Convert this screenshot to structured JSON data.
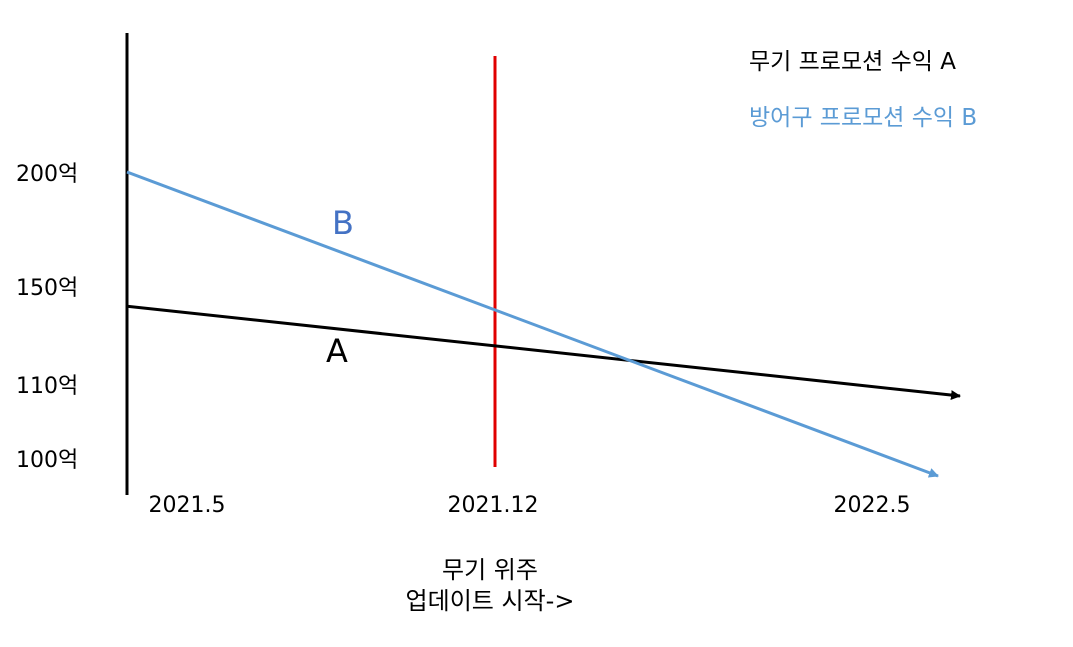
{
  "chart_data": {
    "type": "line",
    "x_ticks": [
      "2021.5",
      "2021.12",
      "2022.5"
    ],
    "y_ticks": [
      "200억",
      "150억",
      "110억",
      "100억"
    ],
    "series": [
      {
        "name": "무기 프로모션 수익 A",
        "label": "A",
        "color": "#000000",
        "x": [
          "2021.5",
          "2021.12",
          "2022.5"
        ],
        "values": [
          145,
          130,
          105
        ],
        "arrow": true
      },
      {
        "name": "방어구 프로모션 수익 B",
        "label": "B",
        "color": "#5b9bd5",
        "x": [
          "2021.5",
          "2021.12",
          "2022.5"
        ],
        "values": [
          200,
          135,
          85
        ],
        "arrow": true
      }
    ],
    "marker": {
      "x": "2021.12",
      "color": "#e00000",
      "label_lines": [
        "무기 위주",
        "업데이트 시작->"
      ]
    },
    "legend_placement": "top-right",
    "grid": false
  }
}
